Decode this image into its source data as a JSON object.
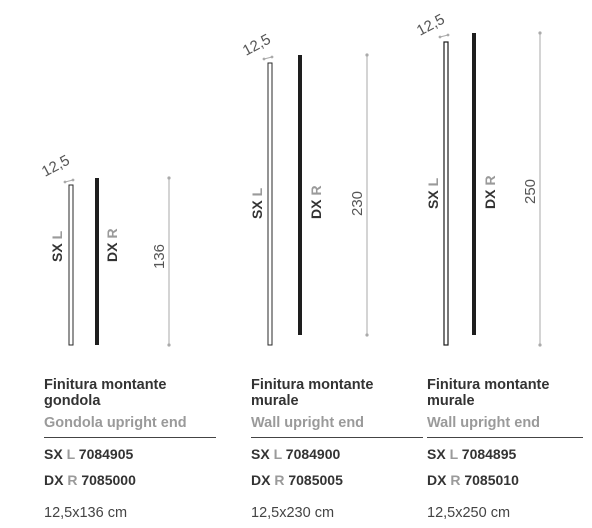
{
  "products": [
    {
      "dimension_label": "12,5",
      "height_label": "136",
      "left_tag": {
        "side": "SX",
        "letter": "L"
      },
      "right_tag": {
        "side": "DX",
        "letter": "R"
      },
      "title_it": "Finitura montante gondola",
      "title_en": "Gondola upright end",
      "codes": [
        {
          "side": "SX",
          "letter": "L",
          "code": "7084905"
        },
        {
          "side": "DX",
          "letter": "R",
          "code": "7085000"
        }
      ],
      "size": "12,5x136 cm"
    },
    {
      "dimension_label": "12,5",
      "height_label": "230",
      "left_tag": {
        "side": "SX",
        "letter": "L"
      },
      "right_tag": {
        "side": "DX",
        "letter": "R"
      },
      "title_it": "Finitura montante murale",
      "title_en": "Wall upright end",
      "codes": [
        {
          "side": "SX",
          "letter": "L",
          "code": "7084900"
        },
        {
          "side": "DX",
          "letter": "R",
          "code": "7085005"
        }
      ],
      "size": "12,5x230 cm"
    },
    {
      "dimension_label": "12,5",
      "height_label": "250",
      "left_tag": {
        "side": "SX",
        "letter": "L"
      },
      "right_tag": {
        "side": "DX",
        "letter": "R"
      },
      "title_it": "Finitura montante murale",
      "title_en": "Wall upright end",
      "codes": [
        {
          "side": "SX",
          "letter": "L",
          "code": "7084895"
        },
        {
          "side": "DX",
          "letter": "R",
          "code": "7085010"
        }
      ],
      "size": "12,5x250 cm"
    }
  ],
  "colors": {
    "profile_dark": "#1e1e1e",
    "text": "#333333",
    "muted": "#9a9a9a",
    "dimension_line": "#aaaaaa"
  }
}
